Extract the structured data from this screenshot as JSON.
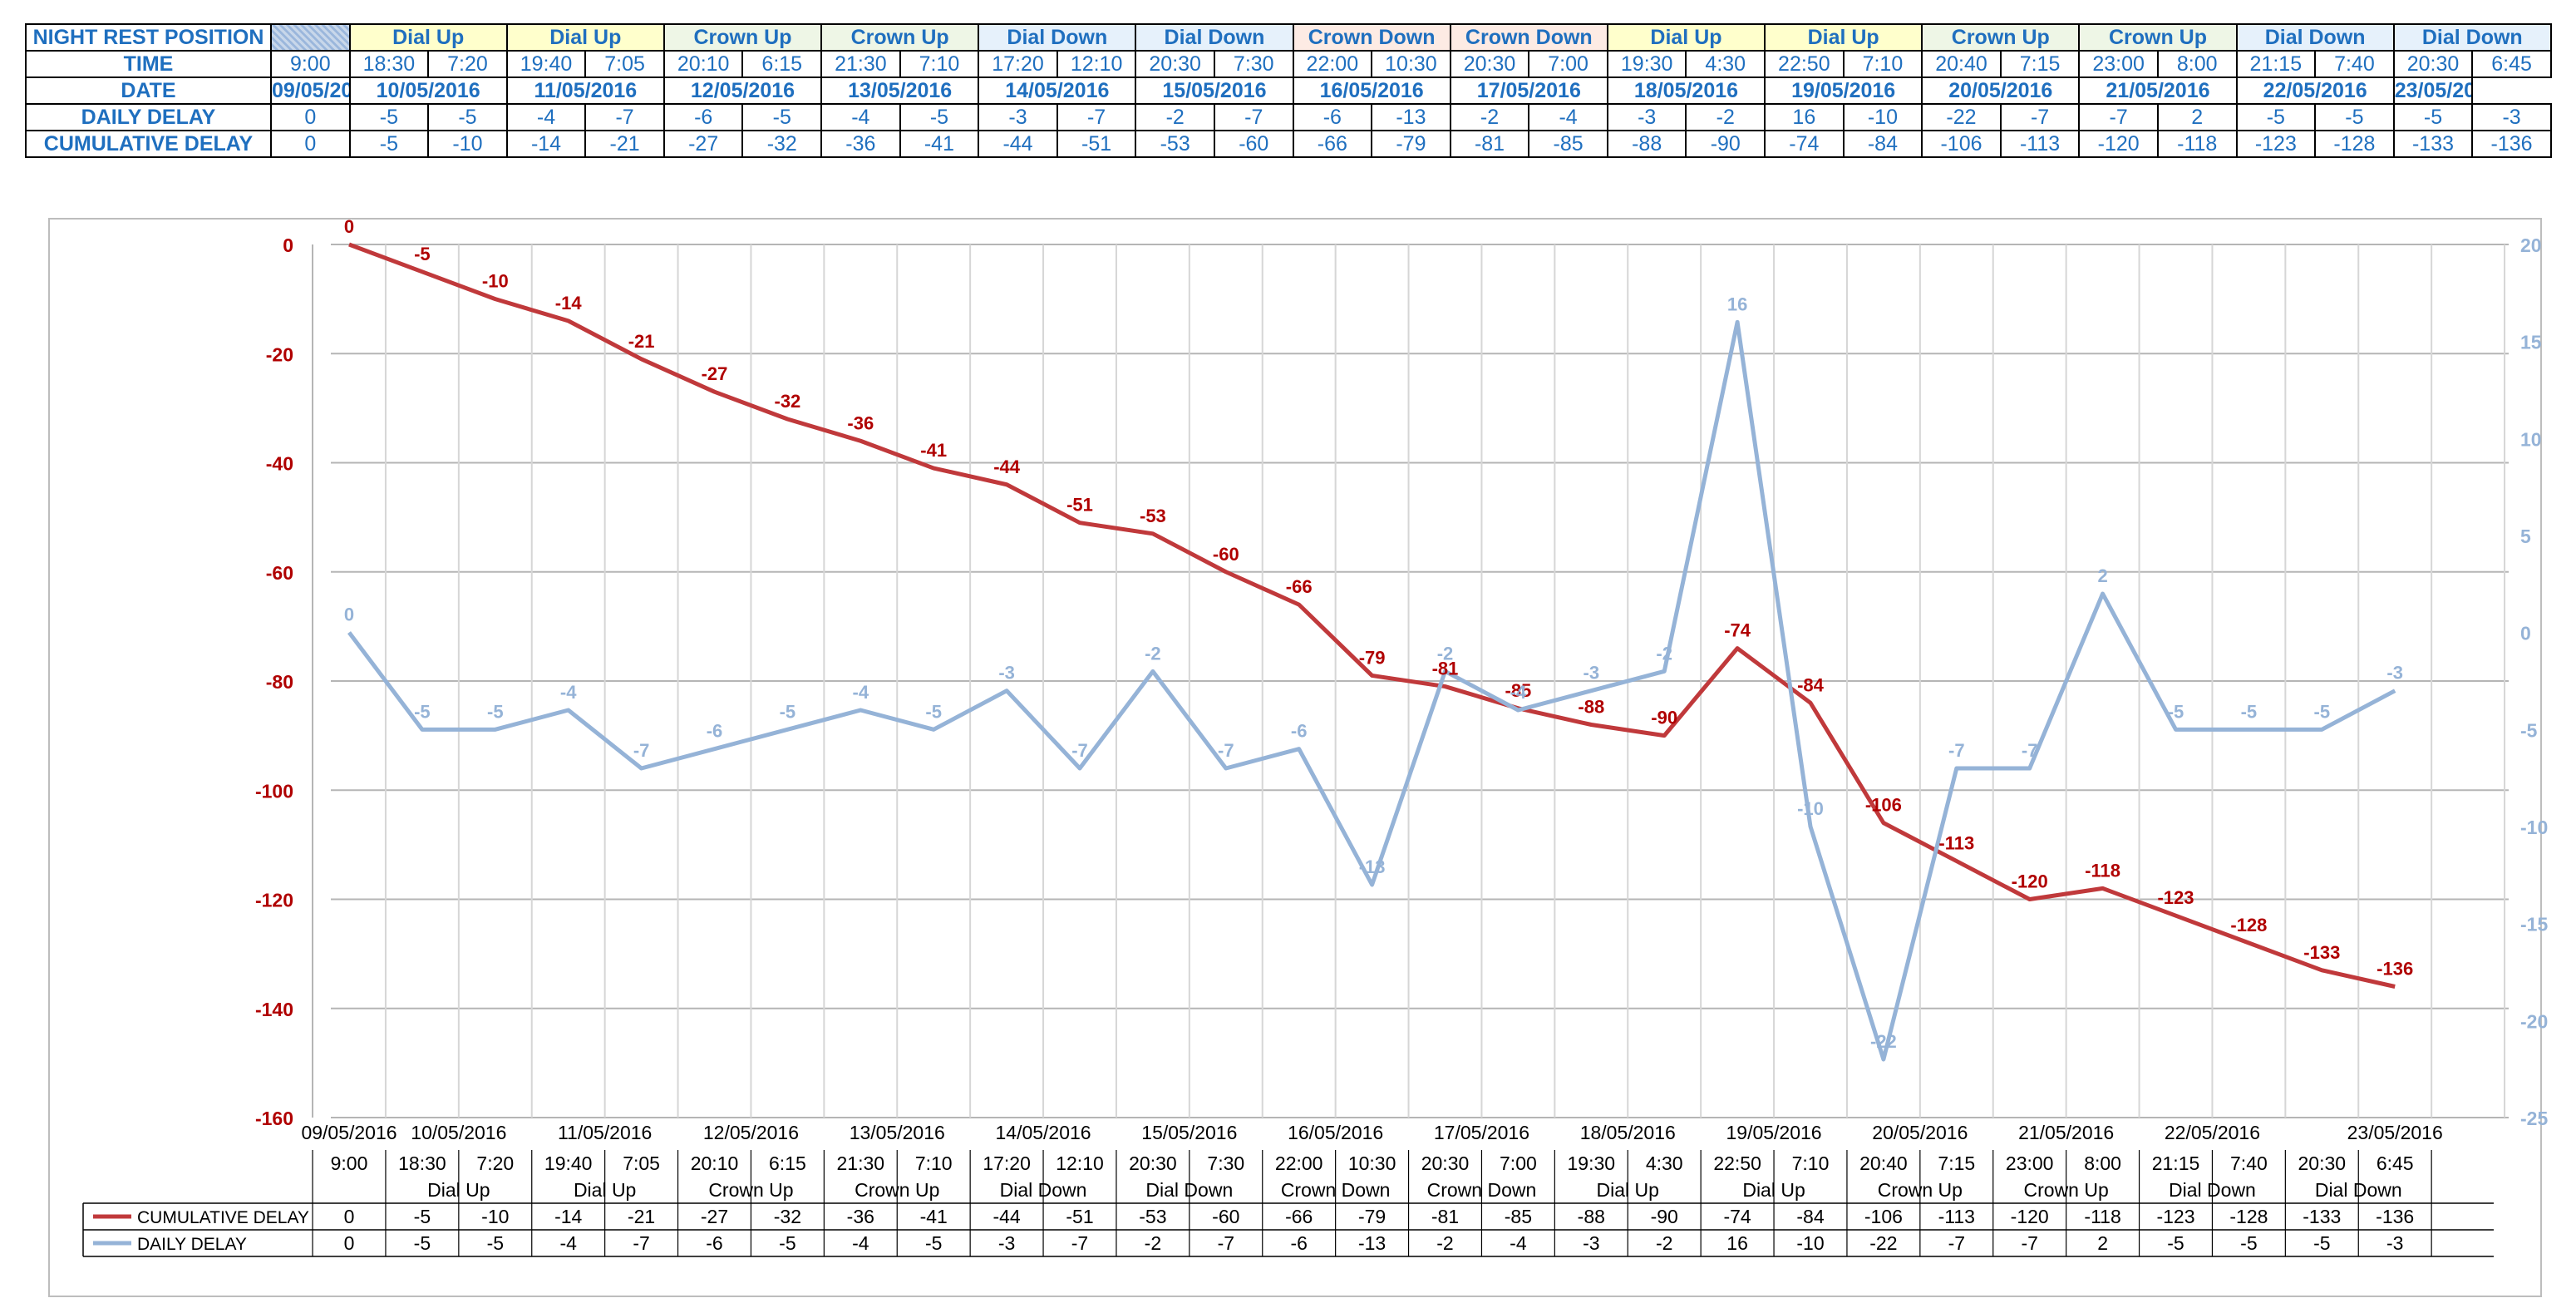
{
  "table": {
    "row_labels": [
      "NIGHT REST POSITION",
      "TIME",
      "DATE",
      "DAILY DELAY",
      "CUMULATIVE DELAY"
    ],
    "positions": [
      {
        "label": "Dial Up",
        "color": "yellow"
      },
      {
        "label": "Dial Up",
        "color": "yellow"
      },
      {
        "label": "Crown Up",
        "color": "green"
      },
      {
        "label": "Crown Up",
        "color": "green"
      },
      {
        "label": "Dial Down",
        "color": "blue"
      },
      {
        "label": "Dial Down",
        "color": "blue"
      },
      {
        "label": "Crown Down",
        "color": "pink"
      },
      {
        "label": "Crown Down",
        "color": "pink"
      },
      {
        "label": "Dial Up",
        "color": "yellow"
      },
      {
        "label": "Dial Up",
        "color": "yellow"
      },
      {
        "label": "Crown Up",
        "color": "green"
      },
      {
        "label": "Crown Up",
        "color": "green"
      },
      {
        "label": "Dial Down",
        "color": "blue"
      },
      {
        "label": "Dial Down",
        "color": "blue"
      }
    ],
    "times": [
      "9:00",
      "18:30",
      "7:20",
      "19:40",
      "7:05",
      "20:10",
      "6:15",
      "21:30",
      "7:10",
      "17:20",
      "12:10",
      "20:30",
      "7:30",
      "22:00",
      "10:30",
      "20:30",
      "7:00",
      "19:30",
      "4:30",
      "22:50",
      "7:10",
      "20:40",
      "7:15",
      "23:00",
      "8:00",
      "21:15",
      "7:40",
      "20:30",
      "6:45"
    ],
    "dates": [
      "09/05/2016",
      "10/05/2016",
      "11/05/2016",
      "12/05/2016",
      "13/05/2016",
      "14/05/2016",
      "15/05/2016",
      "16/05/2016",
      "17/05/2016",
      "18/05/2016",
      "19/05/2016",
      "20/05/2016",
      "21/05/2016",
      "22/05/2016",
      "23/05/2016"
    ]
  },
  "chart_data": {
    "type": "line",
    "x": [
      "9:00",
      "18:30",
      "7:20",
      "19:40",
      "7:05",
      "20:10",
      "6:15",
      "21:30",
      "7:10",
      "17:20",
      "12:10",
      "20:30",
      "7:30",
      "22:00",
      "10:30",
      "20:30",
      "7:00",
      "19:30",
      "4:30",
      "22:50",
      "7:10",
      "20:40",
      "7:15",
      "23:00",
      "8:00",
      "21:15",
      "7:40",
      "20:30",
      "6:45"
    ],
    "dates": [
      "09/05/2016",
      "10/05/2016",
      "11/05/2016",
      "12/05/2016",
      "13/05/2016",
      "14/05/2016",
      "15/05/2016",
      "16/05/2016",
      "17/05/2016",
      "18/05/2016",
      "19/05/2016",
      "20/05/2016",
      "21/05/2016",
      "22/05/2016",
      "23/05/2016"
    ],
    "position_groups": [
      "Dial Up",
      "Dial Up",
      "Crown Up",
      "Crown Up",
      "Dial Down",
      "Dial Down",
      "Crown Down",
      "Crown Down",
      "Dial Up",
      "Dial Up",
      "Crown Up",
      "Crown Up",
      "Dial Down",
      "Dial Down"
    ],
    "series": [
      {
        "name": "CUMULATIVE DELAY",
        "axis": "left",
        "color": "#c0393b",
        "label_color": "#b00000",
        "values": [
          0,
          -5,
          -10,
          -14,
          -21,
          -27,
          -32,
          -36,
          -41,
          -44,
          -51,
          -53,
          -60,
          -66,
          -79,
          -81,
          -85,
          -88,
          -90,
          -74,
          -84,
          -106,
          -113,
          -120,
          -118,
          -123,
          -128,
          -133,
          -136
        ]
      },
      {
        "name": "DAILY DELAY",
        "axis": "right",
        "color": "#95b3d7",
        "label_color": "#95b3d7",
        "values": [
          0,
          -5,
          -5,
          -4,
          -7,
          -6,
          -5,
          -4,
          -5,
          -3,
          -7,
          -2,
          -7,
          -6,
          -13,
          -2,
          -4,
          -3,
          -2,
          16,
          -10,
          -22,
          -7,
          -7,
          2,
          -5,
          -5,
          -5,
          -3
        ]
      }
    ],
    "ylim_left": [
      -160,
      0
    ],
    "yticks_left": [
      0,
      -20,
      -40,
      -60,
      -80,
      -100,
      -120,
      -140,
      -160
    ],
    "ylim_right": [
      -25,
      20
    ],
    "yticks_right": [
      20,
      15,
      10,
      5,
      0,
      -5,
      -10,
      -15,
      -20,
      -25
    ],
    "grid": true,
    "legend": "data-table-below",
    "left_axis_color": "#b00000",
    "right_axis_color": "#95b3d7"
  }
}
